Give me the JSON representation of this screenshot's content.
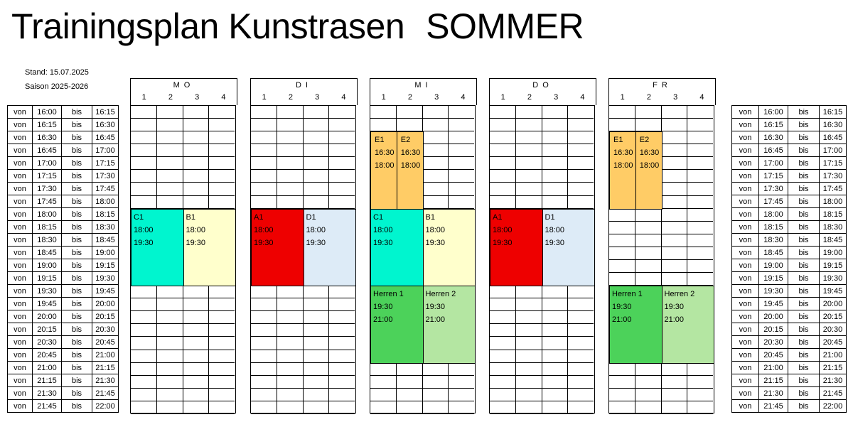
{
  "title": {
    "main": "Trainingsplan Kunstrasen",
    "season_label": "SOMMER"
  },
  "meta": {
    "stand": "Stand: 15.07.2025",
    "saison": "Saison 2025-2026"
  },
  "time_rows": [
    [
      "von",
      "16:00",
      "bis",
      "16:15"
    ],
    [
      "von",
      "16:15",
      "bis",
      "16:30"
    ],
    [
      "von",
      "16:30",
      "bis",
      "16:45"
    ],
    [
      "von",
      "16:45",
      "bis",
      "17:00"
    ],
    [
      "von",
      "17:00",
      "bis",
      "17:15"
    ],
    [
      "von",
      "17:15",
      "bis",
      "17:30"
    ],
    [
      "von",
      "17:30",
      "bis",
      "17:45"
    ],
    [
      "von",
      "17:45",
      "bis",
      "18:00"
    ],
    [
      "von",
      "18:00",
      "bis",
      "18:15"
    ],
    [
      "von",
      "18:15",
      "bis",
      "18:30"
    ],
    [
      "von",
      "18:30",
      "bis",
      "18:45"
    ],
    [
      "von",
      "18:45",
      "bis",
      "19:00"
    ],
    [
      "von",
      "19:00",
      "bis",
      "19:15"
    ],
    [
      "von",
      "19:15",
      "bis",
      "19:30"
    ],
    [
      "von",
      "19:30",
      "bis",
      "19:45"
    ],
    [
      "von",
      "19:45",
      "bis",
      "20:00"
    ],
    [
      "von",
      "20:00",
      "bis",
      "20:15"
    ],
    [
      "von",
      "20:15",
      "bis",
      "20:30"
    ],
    [
      "von",
      "20:30",
      "bis",
      "20:45"
    ],
    [
      "von",
      "20:45",
      "bis",
      "21:00"
    ],
    [
      "von",
      "21:00",
      "bis",
      "21:15"
    ],
    [
      "von",
      "21:15",
      "bis",
      "21:30"
    ],
    [
      "von",
      "21:30",
      "bis",
      "21:45"
    ],
    [
      "von",
      "21:45",
      "bis",
      "22:00"
    ]
  ],
  "days": [
    {
      "name": "MO",
      "cols": [
        "1",
        "2",
        "3",
        "4"
      ],
      "blocks": [
        {
          "team": "C1",
          "start": "18:00",
          "end": "19:30",
          "color": "#00F5CF"
        },
        {
          "team": "B1",
          "start": "18:00",
          "end": "19:30",
          "color": "#FFFFCC"
        }
      ]
    },
    {
      "name": "DI",
      "cols": [
        "1",
        "2",
        "3",
        "4"
      ],
      "blocks": [
        {
          "team": "A1",
          "start": "18:00",
          "end": "19:30",
          "color": "#EE0000"
        },
        {
          "team": "D1",
          "start": "18:00",
          "end": "19:30",
          "color": "#DDEBF7"
        }
      ]
    },
    {
      "name": "MI",
      "cols": [
        "1",
        "2",
        "3",
        "4"
      ],
      "blocks": [
        {
          "team": "E1",
          "start": "16:30",
          "end": "18:00",
          "color": "#FFCC66"
        },
        {
          "team": "E2",
          "start": "16:30",
          "end": "18:00",
          "color": "#FFCC66"
        },
        {
          "team": "C1",
          "start": "18:00",
          "end": "19:30",
          "color": "#00F5CF"
        },
        {
          "team": "B1",
          "start": "18:00",
          "end": "19:30",
          "color": "#FFFFCC"
        },
        {
          "team": "Herren 1",
          "start": "19:30",
          "end": "21:00",
          "color": "#4CD25A"
        },
        {
          "team": "Herren 2",
          "start": "19:30",
          "end": "21:00",
          "color": "#B4E6A2"
        }
      ]
    },
    {
      "name": "DO",
      "cols": [
        "1",
        "2",
        "3",
        "4"
      ],
      "blocks": [
        {
          "team": "A1",
          "start": "18:00",
          "end": "19:30",
          "color": "#EE0000"
        },
        {
          "team": "D1",
          "start": "18:00",
          "end": "19:30",
          "color": "#DDEBF7"
        }
      ]
    },
    {
      "name": "FR",
      "cols": [
        "1",
        "2",
        "3",
        "4"
      ],
      "blocks": [
        {
          "team": "E1",
          "start": "16:30",
          "end": "18:00",
          "color": "#FFCC66"
        },
        {
          "team": "E2",
          "start": "16:30",
          "end": "18:00",
          "color": "#FFCC66"
        },
        {
          "team": "Herren 1",
          "start": "19:30",
          "end": "21:00",
          "color": "#4CD25A"
        },
        {
          "team": "Herren 2",
          "start": "19:30",
          "end": "21:00",
          "color": "#B4E6A2"
        }
      ]
    }
  ]
}
